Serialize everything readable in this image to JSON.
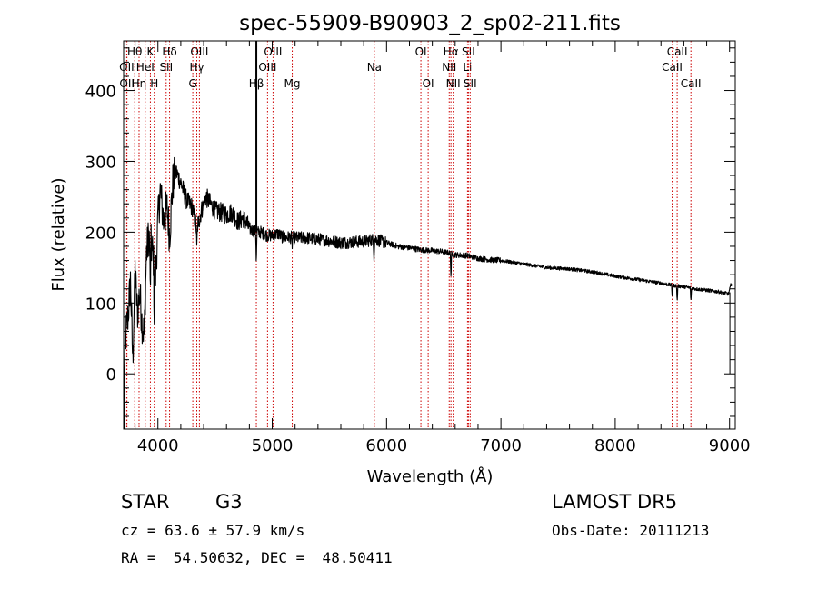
{
  "chart_data": {
    "type": "line",
    "title": "spec-55909-B90903_2_sp02-211.fits",
    "xlabel": "Wavelength (Å)",
    "ylabel": "Flux (relative)",
    "xlim": [
      3700,
      9050
    ],
    "ylim": [
      -78,
      470
    ],
    "xticks": [
      4000,
      5000,
      6000,
      7000,
      8000,
      9000
    ],
    "yticks": [
      0,
      100,
      200,
      300,
      400
    ],
    "line_color": "#000000",
    "marker_color": "#cc0000",
    "spectrum_anchors": [
      [
        3705,
        0
      ],
      [
        3720,
        55
      ],
      [
        3740,
        85
      ],
      [
        3760,
        130
      ],
      [
        3780,
        20
      ],
      [
        3800,
        145
      ],
      [
        3820,
        85
      ],
      [
        3840,
        115
      ],
      [
        3860,
        75
      ],
      [
        3880,
        55
      ],
      [
        3900,
        170
      ],
      [
        3920,
        195
      ],
      [
        3950,
        175
      ],
      [
        3980,
        140
      ],
      [
        4000,
        215
      ],
      [
        4020,
        260
      ],
      [
        4050,
        215
      ],
      [
        4080,
        235
      ],
      [
        4102,
        195
      ],
      [
        4130,
        270
      ],
      [
        4160,
        285
      ],
      [
        4200,
        270
      ],
      [
        4250,
        245
      ],
      [
        4300,
        235
      ],
      [
        4340,
        205
      ],
      [
        4380,
        230
      ],
      [
        4420,
        250
      ],
      [
        4460,
        240
      ],
      [
        4500,
        230
      ],
      [
        4550,
        228
      ],
      [
        4600,
        225
      ],
      [
        4650,
        228
      ],
      [
        4700,
        215
      ],
      [
        4750,
        220
      ],
      [
        4800,
        205
      ],
      [
        4861,
        200
      ],
      [
        4900,
        200
      ],
      [
        4950,
        196
      ],
      [
        5000,
        195
      ],
      [
        5050,
        198
      ],
      [
        5100,
        192
      ],
      [
        5150,
        193
      ],
      [
        5200,
        192
      ],
      [
        5300,
        192
      ],
      [
        5400,
        190
      ],
      [
        5500,
        188
      ],
      [
        5600,
        185
      ],
      [
        5700,
        186
      ],
      [
        5800,
        187
      ],
      [
        5900,
        190
      ],
      [
        6000,
        185
      ],
      [
        6100,
        180
      ],
      [
        6200,
        178
      ],
      [
        6300,
        175
      ],
      [
        6400,
        174
      ],
      [
        6500,
        172
      ],
      [
        6563,
        170
      ],
      [
        6600,
        168
      ],
      [
        6700,
        167
      ],
      [
        6800,
        163
      ],
      [
        6900,
        161
      ],
      [
        7000,
        160
      ],
      [
        7200,
        155
      ],
      [
        7400,
        150
      ],
      [
        7600,
        148
      ],
      [
        7800,
        144
      ],
      [
        8000,
        138
      ],
      [
        8200,
        133
      ],
      [
        8400,
        128
      ],
      [
        8500,
        125
      ],
      [
        8600,
        123
      ],
      [
        8700,
        120
      ],
      [
        8800,
        118
      ],
      [
        8900,
        116
      ],
      [
        8990,
        113
      ],
      [
        9000,
        118
      ],
      [
        9010,
        125
      ],
      [
        9020,
        128
      ]
    ],
    "spectrum_dips": [
      [
        3933,
        70
      ],
      [
        3968,
        75
      ],
      [
        4340,
        30
      ],
      [
        4861,
        42
      ],
      [
        5175,
        10
      ],
      [
        5890,
        25
      ],
      [
        6563,
        35
      ],
      [
        8498,
        15
      ],
      [
        8542,
        22
      ],
      [
        8662,
        18
      ]
    ],
    "spectral_line_markers": [
      {
        "label": "Hθ",
        "wavelength": 3797,
        "row": 1
      },
      {
        "label": "OII",
        "wavelength": 3727,
        "row": 2
      },
      {
        "label": "OII",
        "wavelength": 3729,
        "row": 3
      },
      {
        "label": "Hη",
        "wavelength": 3835,
        "row": 3
      },
      {
        "label": "K",
        "wavelength": 3934,
        "row": 1
      },
      {
        "label": "HeI",
        "wavelength": 3889,
        "row": 2
      },
      {
        "label": "H",
        "wavelength": 3968,
        "row": 3
      },
      {
        "label": "Hδ",
        "wavelength": 4102,
        "row": 1
      },
      {
        "label": "SII",
        "wavelength": 4072,
        "row": 2
      },
      {
        "label": "OIII",
        "wavelength": 4363,
        "row": 1
      },
      {
        "label": "Hγ",
        "wavelength": 4340,
        "row": 2
      },
      {
        "label": "G",
        "wavelength": 4305,
        "row": 3
      },
      {
        "label": "Hβ",
        "wavelength": 4861,
        "row": 3
      },
      {
        "label": "OIII",
        "wavelength": 5007,
        "row": 1
      },
      {
        "label": "OIII",
        "wavelength": 4959,
        "row": 2
      },
      {
        "label": "Mg",
        "wavelength": 5175,
        "row": 3
      },
      {
        "label": "Na",
        "wavelength": 5893,
        "row": 2
      },
      {
        "label": "OI",
        "wavelength": 6300,
        "row": 1
      },
      {
        "label": "OI",
        "wavelength": 6364,
        "row": 3
      },
      {
        "label": "Hα",
        "wavelength": 6563,
        "row": 1
      },
      {
        "label": "NII",
        "wavelength": 6548,
        "row": 2
      },
      {
        "label": "NII",
        "wavelength": 6583,
        "row": 3
      },
      {
        "label": "SII",
        "wavelength": 6716,
        "row": 1
      },
      {
        "label": "Li",
        "wavelength": 6708,
        "row": 2
      },
      {
        "label": "SII",
        "wavelength": 6731,
        "row": 3
      },
      {
        "label": "CaII",
        "wavelength": 8542,
        "row": 1
      },
      {
        "label": "CaII",
        "wavelength": 8498,
        "row": 2
      },
      {
        "label": "CaII",
        "wavelength": 8662,
        "row": 3
      }
    ]
  },
  "info": {
    "class": "STAR",
    "subclass": "G3",
    "survey": "LAMOST DR5",
    "cz": "cz = 63.6 ± 57.9 km/s",
    "obs_date": "Obs-Date: 20111213",
    "coords": "RA =  54.50632, DEC =  48.50411"
  }
}
